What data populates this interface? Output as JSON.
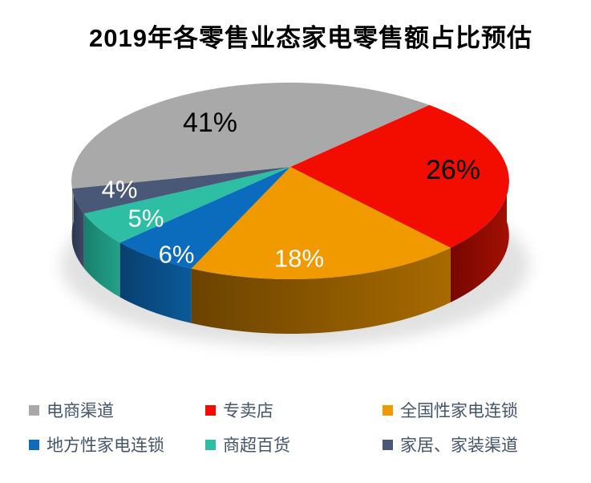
{
  "chart_data": {
    "type": "pie",
    "style": "3d-pie",
    "title": "2019年各零售业态家电零售额占比预估",
    "unit": "%",
    "legend_position": "bottom",
    "series": [
      {
        "label": "电商渠道",
        "value": 41,
        "color": "#A9A9A9",
        "wall_dark": "#8A8A8A",
        "wall_light": "#9C9C9C",
        "label_text": "41%",
        "label_color": "#000000"
      },
      {
        "label": "专卖店",
        "value": 26,
        "color": "#F20D00",
        "wall_dark": "#760700",
        "wall_light": "#A31002",
        "label_text": "26%",
        "label_color": "#000000"
      },
      {
        "label": "全国性家电连锁",
        "value": 18,
        "color": "#F09A00",
        "wall_dark": "#6B4300",
        "wall_light": "#A86A00",
        "label_text": "18%",
        "label_color": "#FFFFFF"
      },
      {
        "label": "地方性家电连锁",
        "value": 6,
        "color": "#0B6CBE",
        "wall_dark": "#083F6E",
        "wall_light": "#0B5A9B",
        "label_text": "6%",
        "label_color": "#FFFFFF"
      },
      {
        "label": "商超百货",
        "value": 5,
        "color": "#2EBEA4",
        "wall_dark": "#17806C",
        "wall_light": "#25A189",
        "label_text": "5%",
        "label_color": "#FFFFFF"
      },
      {
        "label": "家居、家装渠道",
        "value": 4,
        "color": "#495877",
        "wall_dark": "#2B3750",
        "wall_light": "#3D4A66",
        "label_text": "4%",
        "label_color": "#FFFFFF"
      }
    ]
  },
  "colors": {
    "background": "#FFFFFF",
    "title_text": "#000000",
    "legend_text": "#44546A",
    "shadow": "#C9C9C9"
  }
}
